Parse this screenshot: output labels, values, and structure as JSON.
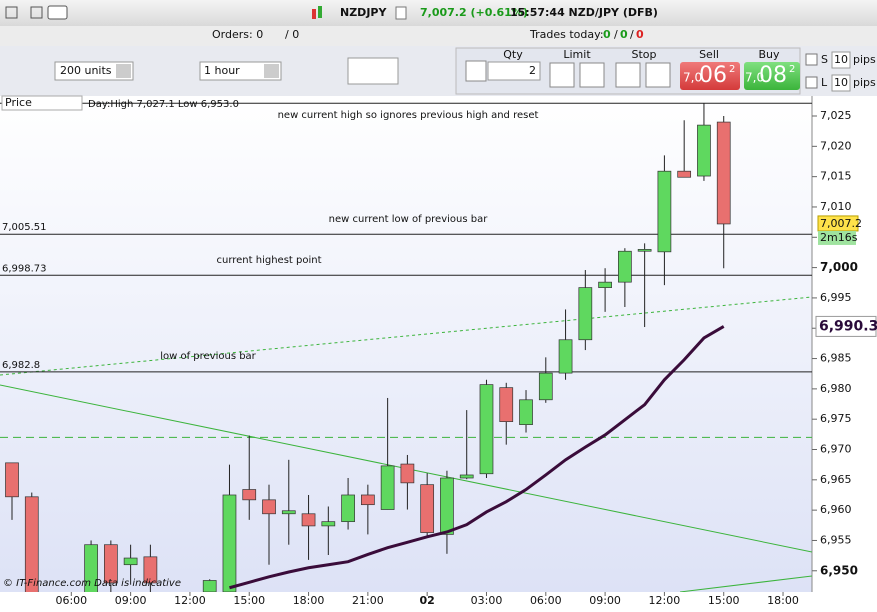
{
  "toolbar": {
    "symbol": "NZDJPY",
    "change": "7,007.2 (+0.61%)",
    "clock": "15:57:44 NZD/JPY (DFB)",
    "orders": "Orders: 0",
    "orders_sep": "/ 0",
    "trades_label": "Trades today:",
    "trades": [
      "0",
      "/",
      "0",
      "/",
      "0"
    ],
    "units": "200 units",
    "interval": "1 hour",
    "qty_label": "Qty",
    "qty": "2",
    "limit": "Limit",
    "stop": "Stop",
    "sell_label": "Sell",
    "buy_label": "Buy",
    "sell": {
      "prefix": "7,0",
      "big": "06",
      "sup": "2"
    },
    "buy": {
      "prefix": "7,0",
      "big": "08",
      "sup": "2"
    },
    "s": "S",
    "l": "L",
    "s_pips": "10",
    "l_pips": "10",
    "pips": "pips"
  },
  "chart_data": {
    "type": "candlestick",
    "price_label": "Price",
    "day_range": "Day:High 7,027.1 Low 6,953.0",
    "credit": "© IT-Finance.com  Data is indicative",
    "categories": [
      null,
      null,
      null,
      "06:00",
      null,
      null,
      "09:00",
      null,
      null,
      "12:00",
      null,
      null,
      "15:00",
      null,
      null,
      "18:00",
      null,
      null,
      "21:00",
      null,
      null,
      "02",
      null,
      null,
      "03:00",
      null,
      null,
      "06:00",
      null,
      null,
      "09:00",
      null,
      null,
      "12:00",
      null,
      null,
      "15:00",
      null,
      null,
      "18:00",
      null
    ],
    "open": [
      6967.8,
      6962.2,
      null,
      null,
      6946.0,
      6954.3,
      6951.0,
      6952.3,
      null,
      null,
      6946.5,
      6946.5,
      6963.4,
      6961.7,
      6959.4,
      6959.4,
      6957.4,
      6958.1,
      6962.5,
      6960.1,
      6967.6,
      6964.2,
      6956.0,
      6965.3,
      6966.0,
      6980.2,
      6974.1,
      6978.2,
      6982.6,
      6988.1,
      6996.7,
      6997.6,
      7002.7,
      7002.6,
      7015.9,
      7015.1,
      7024.0,
      null,
      null,
      null,
      null
    ],
    "high": [
      6967.8,
      6962.9,
      null,
      null,
      6955.0,
      6955.0,
      6954.3,
      6954.3,
      null,
      null,
      6948.6,
      6967.5,
      6972.3,
      6964.2,
      6968.3,
      6962.5,
      6960.6,
      6965.3,
      6964.2,
      6978.5,
      6969.1,
      6966.1,
      6966.5,
      6976.5,
      6981.5,
      6981.0,
      6979.8,
      6985.2,
      6993.1,
      6999.6,
      6999.9,
      7003.2,
      7004.0,
      7018.5,
      7024.3,
      7027.1,
      7025.0,
      null,
      null,
      null,
      null
    ],
    "low": [
      6958.4,
      6945.5,
      null,
      null,
      6945.5,
      6946.5,
      6947.7,
      6946.5,
      null,
      null,
      6946.5,
      6946.5,
      6958.4,
      6951.0,
      6954.3,
      6951.8,
      6952.6,
      6956.8,
      6956.0,
      6960.1,
      6960.1,
      6955.5,
      6952.8,
      6965.1,
      6965.3,
      6970.8,
      6972.8,
      6977.7,
      6981.5,
      6986.4,
      6992.7,
      6993.5,
      6990.2,
      6997.1,
      7014.9,
      7014.3,
      6999.9,
      null,
      null,
      null,
      null
    ],
    "close": [
      6962.2,
      6946.0,
      null,
      null,
      6954.3,
      6948.0,
      6952.1,
      6948.0,
      null,
      null,
      6948.4,
      6962.5,
      6961.7,
      6959.4,
      6959.9,
      6957.4,
      6958.1,
      6962.5,
      6960.9,
      6967.3,
      6964.5,
      6956.3,
      6965.3,
      6965.8,
      6980.7,
      6974.6,
      6978.2,
      6982.6,
      6988.1,
      6996.7,
      6997.6,
      7002.7,
      7003.0,
      7015.9,
      7014.9,
      7023.5,
      7007.2,
      null,
      null,
      null,
      null
    ],
    "up_color": "#5fd85f",
    "down_color": "#e8706f",
    "ma": {
      "color": "#3a0c3a",
      "values": [
        null,
        null,
        null,
        null,
        null,
        null,
        null,
        null,
        null,
        null,
        null,
        6947.2,
        6948.1,
        6949.0,
        6949.8,
        6950.5,
        6951.0,
        6951.5,
        6952.7,
        6953.8,
        6954.7,
        6955.6,
        6956.4,
        6957.6,
        6959.7,
        6961.4,
        6963.4,
        6965.8,
        6968.3,
        6970.4,
        6972.4,
        6974.9,
        6977.4,
        6981.5,
        6984.8,
        6988.4,
        6990.3,
        null,
        null,
        null,
        null
      ],
      "last_label": "6,990.3"
    },
    "last_price": {
      "value": 7007.2,
      "label": "7,007.2",
      "timer": "2m16s"
    },
    "hlines": [
      {
        "value": 7027.1
      },
      {
        "value": 7005.51,
        "label": "7,005.51"
      },
      {
        "value": 6998.73,
        "label": "6,998.73"
      },
      {
        "value": 6982.8,
        "label": "6,982.8"
      }
    ],
    "dashed_level": 6972.0,
    "annotations": [
      "new current high so ignores previous high and reset",
      "new current low of previous bar",
      "current highest point",
      "low of previous bar"
    ],
    "ylim": [
      6946.5,
      7028.3
    ],
    "yticks": [
      {
        "value": 6950,
        "label": "6,950"
      },
      {
        "value": 6955,
        "label": "6,955"
      },
      {
        "value": 6960,
        "label": "6,960"
      },
      {
        "value": 6965,
        "label": "6,965"
      },
      {
        "value": 6970,
        "label": "6,970"
      },
      {
        "value": 6975,
        "label": "6,975"
      },
      {
        "value": 6980,
        "label": "6,980"
      },
      {
        "value": 6985,
        "label": "6,985"
      },
      {
        "value": 6990,
        "label": "6,990"
      },
      {
        "value": 6995,
        "label": "6,995"
      },
      {
        "value": 7000,
        "label": "7,000"
      },
      {
        "value": 7005,
        "label": "7,005"
      },
      {
        "value": 7010,
        "label": "7,010"
      },
      {
        "value": 7015,
        "label": "7,015"
      },
      {
        "value": 7020,
        "label": "7,020"
      },
      {
        "value": 7025,
        "label": "7,025"
      }
    ]
  }
}
